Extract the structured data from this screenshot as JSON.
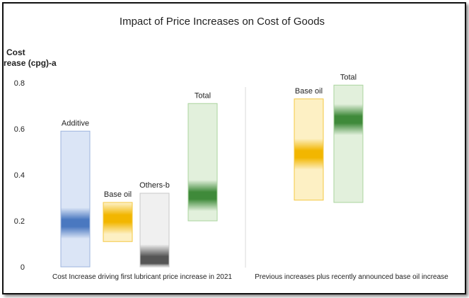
{
  "chart_data": {
    "type": "bar",
    "title": "Impact of Price Increases on Cost of Goods",
    "ylabel_lines": [
      "Cost",
      "rease (cpg)-a"
    ],
    "ylim": [
      0,
      0.8
    ],
    "yticks": [
      "0",
      "0.2",
      "0.4",
      "0.6",
      "0.8"
    ],
    "yticks_values": [
      0,
      0.2,
      0.4,
      0.6,
      0.8
    ],
    "grid": false,
    "groups": [
      {
        "label": "Cost Increase driving first lubricant price increase in 2021",
        "bars": [
          {
            "name": "Additive",
            "low": 0.0,
            "high": 0.59,
            "mid": 0.19,
            "color": "#4a78c0",
            "fill": "#dbe5f6",
            "stroke": "#9db4de"
          },
          {
            "name": "Base oil",
            "low": 0.11,
            "high": 0.28,
            "mid": 0.21,
            "color": "#f2b600",
            "fill": "#fdf0c4",
            "stroke": "#f4c842"
          },
          {
            "name": "Others-b",
            "low": 0.0,
            "high": 0.32,
            "mid": 0.03,
            "color": "#555555",
            "fill": "#f0f0f0",
            "stroke": "#c8c8c8"
          },
          {
            "name": "Total",
            "low": 0.2,
            "high": 0.71,
            "mid": 0.31,
            "color": "#3f8a3a",
            "fill": "#e2f0dc",
            "stroke": "#a9d49e"
          }
        ]
      },
      {
        "label": "Previous increases plus recently announced base oil increase",
        "bars": [
          {
            "name": "Base oil",
            "low": 0.29,
            "high": 0.73,
            "mid": 0.49,
            "color": "#f2b600",
            "fill": "#fdf0c4",
            "stroke": "#f4c842"
          },
          {
            "name": "Total",
            "low": 0.28,
            "high": 0.79,
            "mid": 0.64,
            "color": "#3f8a3a",
            "fill": "#e2f0dc",
            "stroke": "#a9d49e"
          }
        ]
      }
    ]
  }
}
